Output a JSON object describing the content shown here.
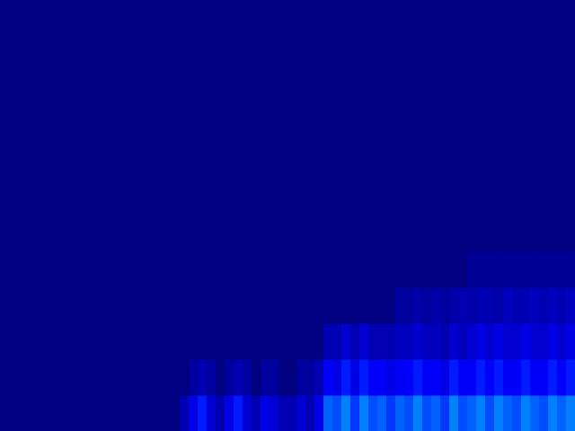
{
  "chart_data": {
    "type": "heatmap",
    "tick_labels": false,
    "xlim": [
      0,
      64
    ],
    "ylim": [
      0,
      12
    ],
    "zlim": [
      0,
      1
    ],
    "cells": [
      [
        0,
        0,
        0,
        0,
        0,
        0,
        0,
        0,
        0,
        0,
        0,
        0,
        0,
        0,
        0,
        0,
        0,
        0,
        0,
        0,
        0.05,
        0.1,
        0.15,
        0.08,
        0.05,
        0.1,
        0.15,
        0.08,
        0.05,
        0.1,
        0.08,
        0.05,
        0.05,
        0.08,
        0.05,
        0.1,
        0.22,
        0.2,
        0.25,
        0.18,
        0.25,
        0.2,
        0.22,
        0.18,
        0.22,
        0.2,
        0.25,
        0.2,
        0.22,
        0.18,
        0.25,
        0.2,
        0.22,
        0.25,
        0.2,
        0.25,
        0.22,
        0.2,
        0.25,
        0.22,
        0.2,
        0.25,
        0.22,
        0.25
      ],
      [
        0,
        0,
        0,
        0,
        0,
        0,
        0,
        0,
        0,
        0,
        0,
        0,
        0,
        0,
        0,
        0,
        0,
        0,
        0,
        0,
        0,
        0.03,
        0.05,
        0.03,
        0,
        0.03,
        0.05,
        0.03,
        0,
        0.03,
        0.03,
        0,
        0,
        0.03,
        0.03,
        0.05,
        0.12,
        0.1,
        0.15,
        0.1,
        0.15,
        0.12,
        0.12,
        0.1,
        0.12,
        0.12,
        0.15,
        0.12,
        0.12,
        0.1,
        0.15,
        0.12,
        0.12,
        0.15,
        0.12,
        0.15,
        0.12,
        0.12,
        0.15,
        0.12,
        0.12,
        0.15,
        0.12,
        0.15
      ],
      [
        0,
        0,
        0,
        0,
        0,
        0,
        0,
        0,
        0,
        0,
        0,
        0,
        0,
        0,
        0,
        0,
        0,
        0,
        0,
        0,
        0,
        0,
        0,
        0,
        0,
        0,
        0,
        0,
        0,
        0,
        0,
        0,
        0,
        0,
        0,
        0,
        0.05,
        0.05,
        0.08,
        0.05,
        0.08,
        0.05,
        0.05,
        0.05,
        0.06,
        0.06,
        0.08,
        0.06,
        0.06,
        0.05,
        0.08,
        0.06,
        0.08,
        0.1,
        0.08,
        0.1,
        0.08,
        0.08,
        0.1,
        0.08,
        0.08,
        0.1,
        0.08,
        0.1
      ],
      [
        0,
        0,
        0,
        0,
        0,
        0,
        0,
        0,
        0,
        0,
        0,
        0,
        0,
        0,
        0,
        0,
        0,
        0,
        0,
        0,
        0,
        0,
        0,
        0,
        0,
        0,
        0,
        0,
        0,
        0,
        0,
        0,
        0,
        0,
        0,
        0,
        0,
        0,
        0,
        0,
        0,
        0,
        0,
        0,
        0.03,
        0.03,
        0.04,
        0.03,
        0.04,
        0.03,
        0.04,
        0.05,
        0.04,
        0.05,
        0.05,
        0.04,
        0.06,
        0.05,
        0.05,
        0.06,
        0.05,
        0.06,
        0.05,
        0.06
      ],
      [
        0,
        0,
        0,
        0,
        0,
        0,
        0,
        0,
        0,
        0,
        0,
        0,
        0,
        0,
        0,
        0,
        0,
        0,
        0,
        0,
        0,
        0,
        0,
        0,
        0,
        0,
        0,
        0,
        0,
        0,
        0,
        0,
        0,
        0,
        0,
        0,
        0,
        0,
        0,
        0,
        0,
        0,
        0,
        0,
        0,
        0,
        0,
        0,
        0,
        0,
        0,
        0,
        0.02,
        0.02,
        0.02,
        0.02,
        0.02,
        0.02,
        0.02,
        0.02,
        0.02,
        0.02,
        0.02,
        0.02
      ],
      [
        0,
        0,
        0,
        0,
        0,
        0,
        0,
        0,
        0,
        0,
        0,
        0,
        0,
        0,
        0,
        0,
        0,
        0,
        0,
        0,
        0,
        0,
        0,
        0,
        0,
        0,
        0,
        0,
        0,
        0,
        0,
        0,
        0,
        0,
        0,
        0,
        0,
        0,
        0,
        0,
        0,
        0,
        0,
        0,
        0,
        0,
        0,
        0,
        0,
        0,
        0,
        0,
        0,
        0,
        0,
        0,
        0,
        0,
        0,
        0,
        0,
        0,
        0,
        0
      ],
      [
        0,
        0,
        0,
        0,
        0,
        0,
        0,
        0,
        0,
        0,
        0,
        0,
        0,
        0,
        0,
        0,
        0,
        0,
        0,
        0,
        0,
        0,
        0,
        0,
        0,
        0,
        0,
        0,
        0,
        0,
        0,
        0,
        0,
        0,
        0,
        0,
        0,
        0,
        0,
        0,
        0,
        0,
        0,
        0,
        0,
        0,
        0,
        0,
        0,
        0,
        0,
        0,
        0,
        0,
        0,
        0,
        0,
        0,
        0,
        0,
        0,
        0,
        0,
        0
      ],
      [
        0,
        0,
        0,
        0,
        0,
        0,
        0,
        0,
        0,
        0,
        0,
        0,
        0,
        0,
        0,
        0,
        0,
        0,
        0,
        0,
        0,
        0,
        0,
        0,
        0,
        0,
        0,
        0,
        0,
        0,
        0,
        0,
        0,
        0,
        0,
        0,
        0,
        0,
        0,
        0,
        0,
        0,
        0,
        0,
        0,
        0,
        0,
        0,
        0,
        0,
        0,
        0,
        0,
        0,
        0,
        0,
        0,
        0,
        0,
        0,
        0,
        0,
        0,
        0
      ],
      [
        0,
        0,
        0,
        0,
        0,
        0,
        0,
        0,
        0,
        0,
        0,
        0,
        0,
        0,
        0,
        0,
        0,
        0,
        0,
        0,
        0,
        0,
        0,
        0,
        0,
        0,
        0,
        0,
        0,
        0,
        0,
        0,
        0,
        0,
        0,
        0,
        0,
        0,
        0,
        0,
        0,
        0,
        0,
        0,
        0,
        0,
        0,
        0,
        0,
        0,
        0,
        0,
        0,
        0,
        0,
        0,
        0,
        0,
        0,
        0,
        0,
        0,
        0,
        0
      ],
      [
        0,
        0,
        0,
        0,
        0,
        0,
        0,
        0,
        0,
        0,
        0,
        0,
        0,
        0,
        0,
        0,
        0,
        0,
        0,
        0,
        0,
        0,
        0,
        0,
        0,
        0,
        0,
        0,
        0,
        0,
        0,
        0,
        0,
        0,
        0,
        0,
        0,
        0,
        0,
        0,
        0,
        0,
        0,
        0,
        0,
        0,
        0,
        0,
        0,
        0,
        0,
        0,
        0,
        0,
        0,
        0,
        0,
        0,
        0,
        0,
        0,
        0,
        0,
        0
      ],
      [
        0,
        0,
        0,
        0,
        0,
        0,
        0,
        0,
        0,
        0,
        0,
        0,
        0,
        0,
        0,
        0,
        0,
        0,
        0,
        0,
        0,
        0,
        0,
        0,
        0,
        0,
        0,
        0,
        0,
        0,
        0,
        0,
        0,
        0,
        0,
        0,
        0,
        0,
        0,
        0,
        0,
        0,
        0,
        0,
        0,
        0,
        0,
        0,
        0,
        0,
        0,
        0,
        0,
        0,
        0,
        0,
        0,
        0,
        0,
        0,
        0,
        0,
        0,
        0
      ],
      [
        0,
        0,
        0,
        0,
        0,
        0,
        0,
        0,
        0,
        0,
        0,
        0,
        0,
        0,
        0,
        0,
        0,
        0,
        0,
        0,
        0,
        0,
        0,
        0,
        0,
        0,
        0,
        0,
        0,
        0,
        0,
        0,
        0,
        0,
        0,
        0,
        0,
        0,
        0,
        0,
        0,
        0,
        0,
        0,
        0,
        0,
        0,
        0,
        0,
        0,
        0,
        0,
        0,
        0,
        0,
        0,
        0,
        0,
        0,
        0,
        0,
        0,
        0,
        0
      ]
    ]
  }
}
